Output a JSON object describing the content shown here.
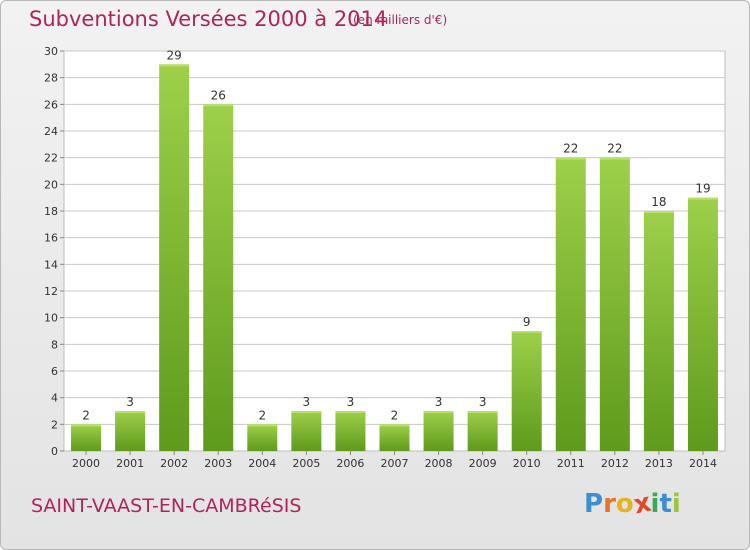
{
  "header": {
    "title": "Subventions Versées 2000 à 2014",
    "subtitle": "(en milliers d'€)"
  },
  "footer": {
    "commune": "SAINT-VAAST-EN-CAMBRéSIS",
    "logo_letters": [
      "P",
      "r",
      "o",
      "x",
      "i",
      "t",
      "i"
    ],
    "logo_colors": [
      "#3a8ed1",
      "#e8732a",
      "#e8b21d",
      "#e04a2a",
      "#3aaa5a",
      "#3a8ed1",
      "#9bc53d"
    ]
  },
  "colors": {
    "bar_top": "#9ed04a",
    "bar_bottom": "#5e9a1c",
    "accent": "#b0245a",
    "grid": "#c8c8c8"
  },
  "chart_data": {
    "type": "bar",
    "title": "Subventions Versées 2000 à 2014",
    "subtitle": "(en milliers d'€)",
    "categories": [
      "2000",
      "2001",
      "2002",
      "2003",
      "2004",
      "2005",
      "2006",
      "2007",
      "2008",
      "2009",
      "2010",
      "2011",
      "2012",
      "2013",
      "2014"
    ],
    "values": [
      2,
      3,
      29,
      26,
      2,
      3,
      3,
      2,
      3,
      3,
      9,
      22,
      22,
      18,
      19
    ],
    "ylim": [
      0,
      30
    ],
    "yticks": [
      0,
      2,
      4,
      6,
      8,
      10,
      12,
      14,
      16,
      18,
      20,
      22,
      24,
      26,
      28,
      30
    ],
    "grid": true,
    "legend": "none"
  }
}
